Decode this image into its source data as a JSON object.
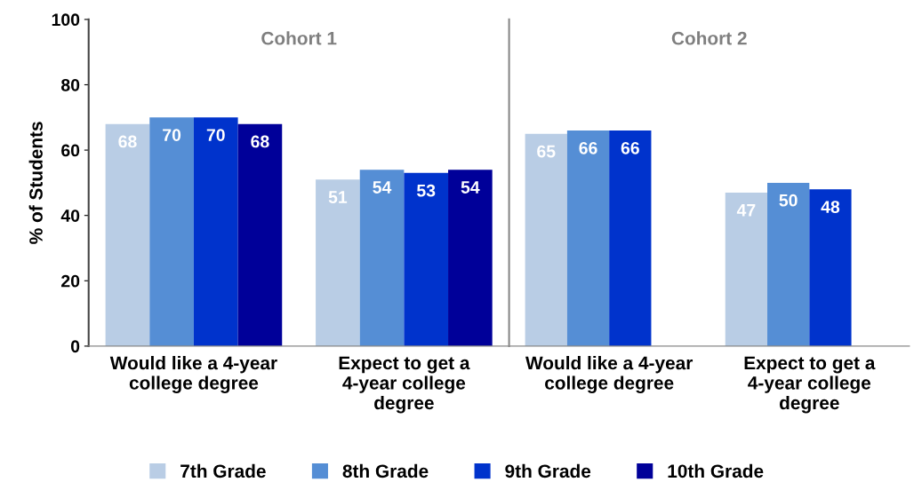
{
  "chart_data": [
    {
      "type": "bar",
      "title": "Cohort 1",
      "ylabel": "% of Students",
      "categories": [
        "Would like a 4-year\ncollege degree",
        "Expect to get a\n4-year college\ndegree"
      ],
      "series": [
        {
          "name": "7th Grade",
          "color": "#b9cde5",
          "values": [
            68,
            51
          ]
        },
        {
          "name": "8th Grade",
          "color": "#558ed5",
          "values": [
            70,
            54
          ]
        },
        {
          "name": "9th Grade",
          "color": "#0033cc",
          "values": [
            70,
            53
          ]
        },
        {
          "name": "10th Grade",
          "color": "#000099",
          "values": [
            68,
            54
          ]
        }
      ],
      "ylim": [
        0,
        100
      ],
      "yticks": [
        0,
        20,
        40,
        60,
        80,
        100
      ],
      "data_labels": true,
      "grid": false,
      "legend": "bottom"
    },
    {
      "type": "bar",
      "title": "Cohort 2",
      "categories": [
        "Would like a 4-year\ncollege degree",
        "Expect to get a\n4-year college\ndegree"
      ],
      "series": [
        {
          "color": "#b9cde5",
          "values": [
            65,
            47
          ]
        },
        {
          "color": "#558ed5",
          "values": [
            66,
            50
          ]
        },
        {
          "color": "#0033cc",
          "values": [
            66,
            48
          ]
        },
        {
          "color": "#000099",
          "values": [
            null,
            null
          ]
        }
      ],
      "ylim": [
        0,
        100
      ],
      "yticks": [
        0,
        20,
        40,
        60,
        80,
        100
      ],
      "data_labels": true,
      "grid": false,
      "legend": false,
      "tick_labels": "x"
    }
  ]
}
